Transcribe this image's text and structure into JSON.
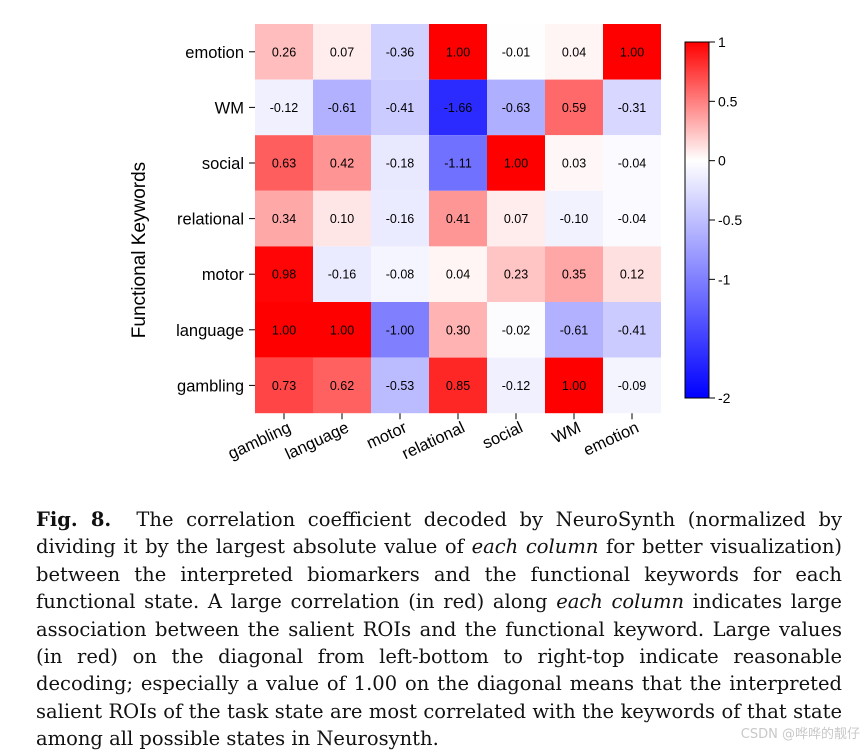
{
  "chart_data": {
    "type": "heatmap",
    "ylabel": "Functional Keywords",
    "xlabel": "",
    "x_categories": [
      "gambling",
      "language",
      "motor",
      "relational",
      "social",
      "WM",
      "emotion"
    ],
    "y_categories": [
      "emotion",
      "WM",
      "social",
      "relational",
      "motor",
      "language",
      "gambling"
    ],
    "values": [
      [
        "0.26",
        "0.07",
        "-0.36",
        "1.00",
        "-0.01",
        "0.04",
        "1.00"
      ],
      [
        "-0.12",
        "-0.61",
        "-0.41",
        "-1.66",
        "-0.63",
        "0.59",
        "-0.31"
      ],
      [
        "0.63",
        "0.42",
        "-0.18",
        "-1.11",
        "1.00",
        "0.03",
        "-0.04"
      ],
      [
        "0.34",
        "0.10",
        "-0.16",
        "0.41",
        "0.07",
        "-0.10",
        "-0.04"
      ],
      [
        "0.98",
        "-0.16",
        "-0.08",
        "0.04",
        "0.23",
        "0.35",
        "0.12"
      ],
      [
        "1.00",
        "1.00",
        "-1.00",
        "0.30",
        "-0.02",
        "-0.61",
        "-0.41"
      ],
      [
        "0.73",
        "0.62",
        "-0.53",
        "0.85",
        "-0.12",
        "1.00",
        "-0.09"
      ]
    ],
    "colorbar": {
      "range": [
        -2,
        1
      ],
      "ticks": [
        1,
        0.5,
        0,
        -0.5,
        -1,
        -2
      ],
      "tick_labels": [
        "1",
        "0.5",
        "0",
        "-0.5",
        "-1",
        "-2"
      ],
      "colormap": [
        "#0000ff",
        "#ffffff",
        "#ff0000"
      ]
    }
  },
  "caption": {
    "label": "Fig. 8.",
    "seg1": "The correlation coefficient decoded by NeuroSynth (normalized by dividing it by the largest absolute value of ",
    "em1": "each column",
    "seg2": " for better visualization) between the interpreted biomarkers and the functional keywords for each functional state. A large correlation (in red) along ",
    "em2": "each column",
    "seg3": " indicates large association between the salient ROIs and the functional keyword. Large values (in red) on the diagonal from left-bottom to right-top indicate reasonable decoding; especially a value of 1.00 on the diagonal means that the interpreted salient ROIs of the task state are most correlated with the keywords of that state among all possible states in Neurosynth."
  },
  "watermark": "CSDN @哗哗的靓仔"
}
